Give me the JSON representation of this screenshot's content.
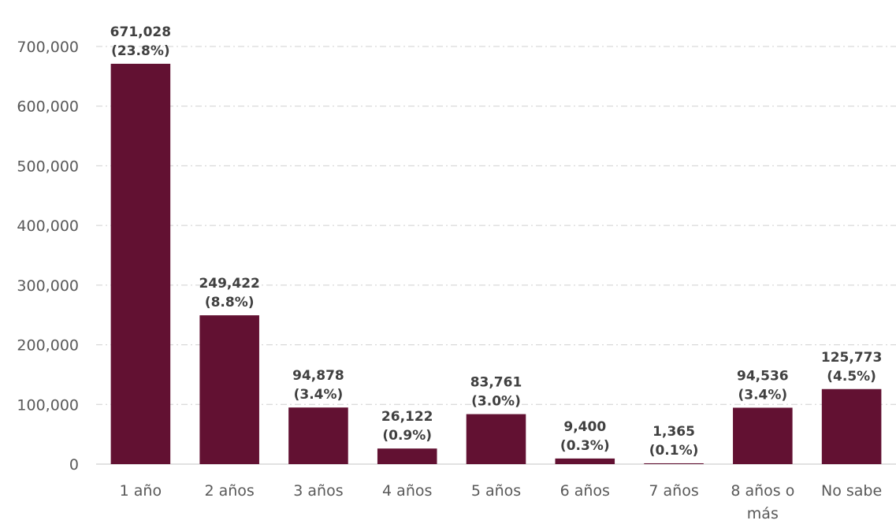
{
  "chart_data": {
    "type": "bar",
    "categories": [
      "1 año",
      "2 años",
      "3 años",
      "4 años",
      "5 años",
      "6 años",
      "7 años",
      "8 años o más",
      "No sabe"
    ],
    "category_label_lines": [
      [
        "1 año"
      ],
      [
        "2 años"
      ],
      [
        "3 años"
      ],
      [
        "4 años"
      ],
      [
        "5 años"
      ],
      [
        "6 años"
      ],
      [
        "7 años"
      ],
      [
        "8 años o",
        "más"
      ],
      [
        "No sabe"
      ]
    ],
    "values": [
      671028,
      249422,
      94878,
      26122,
      83761,
      9400,
      1365,
      94536,
      125773
    ],
    "value_labels": [
      "671,028",
      "249,422",
      "94,878",
      "26,122",
      "83,761",
      "9,400",
      "1,365",
      "94,536",
      "125,773"
    ],
    "percent_labels": [
      "(23.8%)",
      "(8.8%)",
      "(3.4%)",
      "(0.9%)",
      "(3.0%)",
      "(0.3%)",
      "(0.1%)",
      "(3.4%)",
      "(4.5%)"
    ],
    "ylim": [
      0,
      700000
    ],
    "y_ticks": [
      0,
      100000,
      200000,
      300000,
      400000,
      500000,
      600000,
      700000
    ],
    "y_tick_labels": [
      "0",
      "100,000",
      "200,000",
      "300,000",
      "400,000",
      "500,000",
      "600,000",
      "700,000"
    ],
    "title": "",
    "xlabel": "",
    "ylabel": "",
    "grid": true,
    "bar_color": "#621132"
  }
}
